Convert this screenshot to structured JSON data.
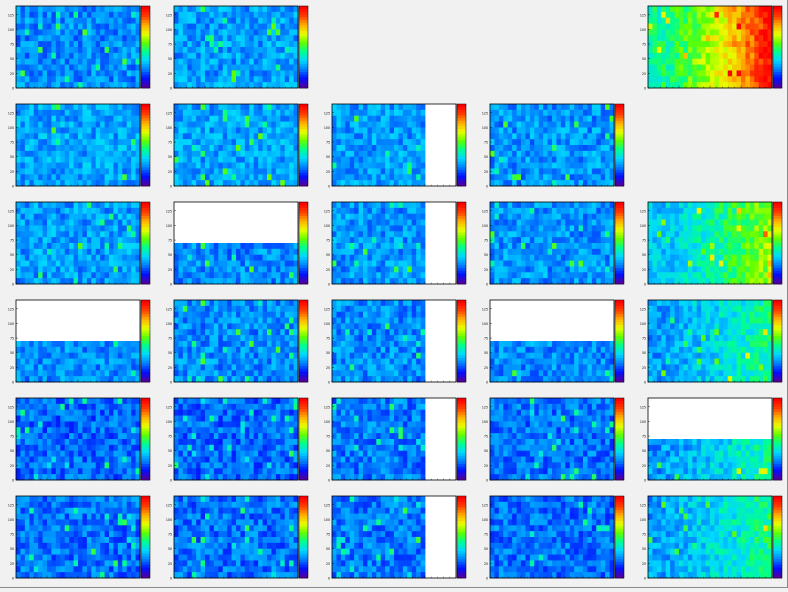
{
  "canvas": {
    "rows": 6,
    "cols": 5,
    "background": "#f1f1f1",
    "frame_color": "#000000"
  },
  "palette": {
    "name": "rainbow",
    "stops": [
      "#5000a0",
      "#0010ff",
      "#0080ff",
      "#00d8ff",
      "#00ff90",
      "#60ff00",
      "#e8ff00",
      "#ffb000",
      "#ff4000",
      "#ff0000"
    ]
  },
  "chart_data": {
    "type": "heatmap",
    "grid": [
      6,
      5
    ],
    "axis_ticks": [
      "0",
      "25",
      "50",
      "75",
      "100",
      "125"
    ],
    "ylim": [
      0,
      140
    ],
    "bins": [
      28,
      14
    ],
    "panels": [
      {
        "row": 0,
        "col": 0,
        "present": true,
        "level": 0.24,
        "trend": 0.0,
        "seed": 11,
        "blank_top": 0,
        "blank_right": 0
      },
      {
        "row": 0,
        "col": 1,
        "present": true,
        "level": 0.26,
        "trend": 0.0,
        "seed": 12,
        "blank_top": 0,
        "blank_right": 0
      },
      {
        "row": 0,
        "col": 2,
        "present": false
      },
      {
        "row": 0,
        "col": 3,
        "present": false
      },
      {
        "row": 0,
        "col": 4,
        "present": true,
        "level": 0.42,
        "trend": 0.55,
        "seed": 15,
        "blank_top": 0,
        "blank_right": 0
      },
      {
        "row": 1,
        "col": 0,
        "present": true,
        "level": 0.27,
        "trend": 0.0,
        "seed": 21,
        "blank_top": 0,
        "blank_right": 0
      },
      {
        "row": 1,
        "col": 1,
        "present": true,
        "level": 0.27,
        "trend": 0.0,
        "seed": 22,
        "blank_top": 0,
        "blank_right": 0
      },
      {
        "row": 1,
        "col": 2,
        "present": true,
        "level": 0.26,
        "trend": 0.0,
        "seed": 23,
        "blank_top": 0,
        "blank_right": 0.25
      },
      {
        "row": 1,
        "col": 3,
        "present": true,
        "level": 0.25,
        "trend": 0.0,
        "seed": 24,
        "blank_top": 0,
        "blank_right": 0
      },
      {
        "row": 1,
        "col": 4,
        "present": false
      },
      {
        "row": 2,
        "col": 0,
        "present": true,
        "level": 0.26,
        "trend": 0.0,
        "seed": 31,
        "blank_top": 0,
        "blank_right": 0
      },
      {
        "row": 2,
        "col": 1,
        "present": true,
        "level": 0.24,
        "trend": 0.0,
        "seed": 32,
        "blank_top": 0.5,
        "blank_right": 0
      },
      {
        "row": 2,
        "col": 2,
        "present": true,
        "level": 0.25,
        "trend": 0.0,
        "seed": 33,
        "blank_top": 0,
        "blank_right": 0.25
      },
      {
        "row": 2,
        "col": 3,
        "present": true,
        "level": 0.25,
        "trend": 0.0,
        "seed": 34,
        "blank_top": 0,
        "blank_right": 0
      },
      {
        "row": 2,
        "col": 4,
        "present": true,
        "level": 0.3,
        "trend": 0.3,
        "seed": 35,
        "blank_top": 0,
        "blank_right": 0
      },
      {
        "row": 3,
        "col": 0,
        "present": true,
        "level": 0.24,
        "trend": 0.0,
        "seed": 41,
        "blank_top": 0.5,
        "blank_right": 0
      },
      {
        "row": 3,
        "col": 1,
        "present": true,
        "level": 0.24,
        "trend": 0.0,
        "seed": 42,
        "blank_top": 0,
        "blank_right": 0
      },
      {
        "row": 3,
        "col": 2,
        "present": true,
        "level": 0.24,
        "trend": 0.0,
        "seed": 43,
        "blank_top": 0,
        "blank_right": 0.25
      },
      {
        "row": 3,
        "col": 3,
        "present": true,
        "level": 0.24,
        "trend": 0.0,
        "seed": 44,
        "blank_top": 0.5,
        "blank_right": 0
      },
      {
        "row": 3,
        "col": 4,
        "present": true,
        "level": 0.26,
        "trend": 0.18,
        "seed": 45,
        "blank_top": 0,
        "blank_right": 0
      },
      {
        "row": 4,
        "col": 0,
        "present": true,
        "level": 0.2,
        "trend": 0.0,
        "seed": 51,
        "blank_top": 0,
        "blank_right": 0
      },
      {
        "row": 4,
        "col": 1,
        "present": true,
        "level": 0.2,
        "trend": 0.0,
        "seed": 52,
        "blank_top": 0,
        "blank_right": 0
      },
      {
        "row": 4,
        "col": 2,
        "present": true,
        "level": 0.22,
        "trend": 0.0,
        "seed": 53,
        "blank_top": 0,
        "blank_right": 0.25
      },
      {
        "row": 4,
        "col": 3,
        "present": true,
        "level": 0.21,
        "trend": 0.0,
        "seed": 54,
        "blank_top": 0,
        "blank_right": 0
      },
      {
        "row": 4,
        "col": 4,
        "present": true,
        "level": 0.25,
        "trend": 0.18,
        "seed": 55,
        "blank_top": 0.5,
        "blank_right": 0
      },
      {
        "row": 5,
        "col": 0,
        "present": true,
        "level": 0.21,
        "trend": 0.0,
        "seed": 61,
        "blank_top": 0,
        "blank_right": 0
      },
      {
        "row": 5,
        "col": 1,
        "present": true,
        "level": 0.21,
        "trend": 0.0,
        "seed": 62,
        "blank_top": 0,
        "blank_right": 0
      },
      {
        "row": 5,
        "col": 2,
        "present": true,
        "level": 0.22,
        "trend": 0.0,
        "seed": 63,
        "blank_top": 0,
        "blank_right": 0.25
      },
      {
        "row": 5,
        "col": 3,
        "present": true,
        "level": 0.21,
        "trend": 0.0,
        "seed": 64,
        "blank_top": 0,
        "blank_right": 0
      },
      {
        "row": 5,
        "col": 4,
        "present": true,
        "level": 0.26,
        "trend": 0.2,
        "seed": 65,
        "blank_top": 0,
        "blank_right": 0
      }
    ]
  }
}
